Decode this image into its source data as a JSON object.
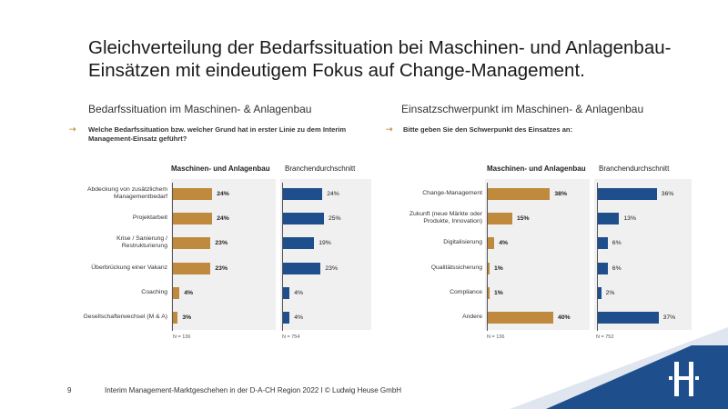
{
  "title_line1": "Gleichverteilung der Bedarfssituation bei Maschinen- und Anlagenbau-",
  "title_line2": "Einsätzen mit eindeutigem Fokus auf Change-Management.",
  "colors": {
    "gold": "#c08a3e",
    "blue": "#1f4e8c",
    "panel": "#f0f0f0",
    "corner": "#1f4e8c"
  },
  "left": {
    "section_title": "Bedarfssituation im Maschinen- & Anlagenbau",
    "question_line1": "Welche Bedarfssituation  bzw. welcher Grund hat in erster Linie zu dem Interim",
    "question_line2": "Management-Einsatz geführt?",
    "n_left": "N = 136",
    "n_right": "N = 754"
  },
  "right": {
    "section_title": "Einsatzschwerpunkt im Maschinen- & Anlagenbau",
    "question_line1": "Bitte geben Sie den Schwerpunkt des Einsatzes an:",
    "n_left": "N = 136",
    "n_right": "N = 752"
  },
  "footer": {
    "page_number": "9",
    "text": "Interim Management-Marktgeschehen  in der D-A-CH Region 2022 I © Ludwig Heuse GmbH"
  },
  "chart_data": [
    {
      "type": "bar",
      "orientation": "horizontal",
      "title": "Bedarfssituation im Maschinen- & Anlagenbau",
      "categories": [
        [
          "Abdeckung von zusätzlichem",
          "Managementbedarf"
        ],
        [
          "Projektarbeit"
        ],
        [
          "Krise / Sanierung /",
          "Restrukturierung"
        ],
        [
          "Überbrückung einer Vakanz"
        ],
        [
          "Coaching"
        ],
        [
          "Gesellschafterwechsel (M & A)"
        ]
      ],
      "series": [
        {
          "name": "Maschinen- und Anlagenbau",
          "values": [
            24,
            24,
            23,
            23,
            4,
            3
          ],
          "labels": [
            "24%",
            "24%",
            "23%",
            "23%",
            "4%",
            "3%"
          ]
        },
        {
          "name": "Branchendurchschnitt",
          "values": [
            24,
            25,
            19,
            23,
            4,
            4
          ],
          "labels": [
            "24%",
            "25%",
            "19%",
            "23%",
            "4%",
            "4%"
          ]
        }
      ],
      "xlim": [
        0,
        40
      ]
    },
    {
      "type": "bar",
      "orientation": "horizontal",
      "title": "Einsatzschwerpunkt im Maschinen- & Anlagenbau",
      "categories": [
        [
          "Change-Management"
        ],
        [
          "Zukunft (neue Märkte oder",
          "Produkte, Innovation)"
        ],
        [
          "Digitalisierung"
        ],
        [
          "Qualitätssicherung"
        ],
        [
          "Compliance"
        ],
        [
          "Andere"
        ]
      ],
      "series": [
        {
          "name": "Maschinen- und Anlagenbau",
          "values": [
            38,
            15,
            4,
            1,
            1,
            40
          ],
          "labels": [
            "38%",
            "15%",
            "4%",
            "1%",
            "1%",
            "40%"
          ]
        },
        {
          "name": "Branchendurchschnitt",
          "values": [
            36,
            13,
            6,
            6,
            2,
            37
          ],
          "labels": [
            "36%",
            "13%",
            "6%",
            "6%",
            "2%",
            "37%"
          ]
        }
      ],
      "xlim": [
        0,
        40
      ]
    }
  ]
}
